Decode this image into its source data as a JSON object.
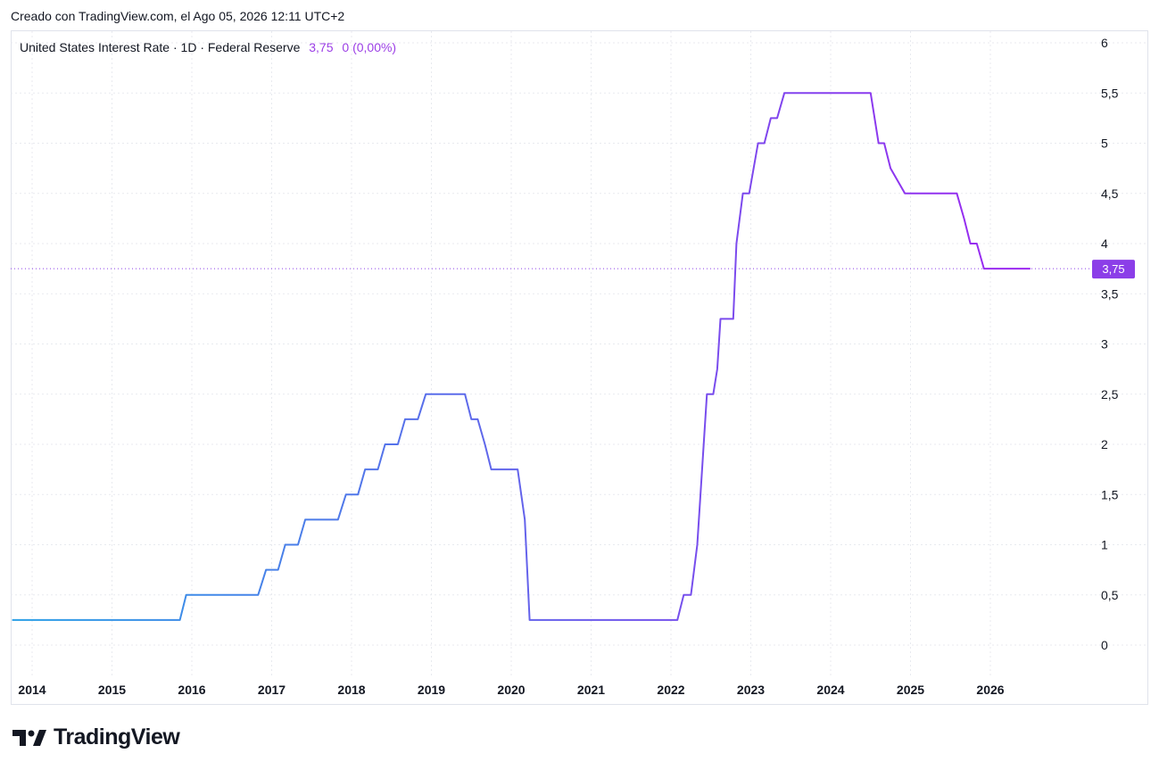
{
  "header": {
    "created_text": "Creado con TradingView.com, el Ago 05, 2026 12:11 UTC+2"
  },
  "legend": {
    "symbol_text": "United States Interest Rate · 1D · Federal Reserve",
    "value_text": "3,75",
    "change_text": "0 (0,00%)"
  },
  "footer": {
    "brand": "TradingView",
    "logo_icon": "tradingview-logo-icon"
  },
  "colors": {
    "line_start": "#2aa0e6",
    "line_end": "#9c27f0",
    "price_label_bg": "#8b3ee8",
    "grid": "#e8eaef"
  },
  "chart_data": {
    "type": "line",
    "title": "United States Interest Rate · 1D · Federal Reserve",
    "xlabel": "",
    "ylabel": "",
    "xlim": [
      2013.75,
      2027.0
    ],
    "ylim": [
      0,
      6
    ],
    "grid": true,
    "y_axis_position": "right",
    "y_ticks": [
      "0",
      "0,5",
      "1",
      "1,5",
      "2",
      "2,5",
      "3",
      "3,5",
      "4",
      "4,5",
      "5",
      "5,5",
      "6"
    ],
    "x_ticks": [
      "2014",
      "2015",
      "2016",
      "2017",
      "2018",
      "2019",
      "2020",
      "2021",
      "2022",
      "2023",
      "2024",
      "2025",
      "2026"
    ],
    "last_value": 3.75,
    "last_value_label": "3,75",
    "series": [
      {
        "x": [
          2013.75,
          2015.85,
          2015.93,
          2016.83,
          2016.93,
          2017.08,
          2017.17,
          2017.33,
          2017.42,
          2017.83,
          2017.93,
          2018.08,
          2018.17,
          2018.33,
          2018.42,
          2018.58,
          2018.67,
          2018.83,
          2018.93,
          2019.42,
          2019.5,
          2019.58,
          2019.67,
          2019.75,
          2019.83,
          2020.08,
          2020.17,
          2020.23,
          2022.08,
          2022.16,
          2022.25,
          2022.33,
          2022.45,
          2022.53,
          2022.58,
          2022.62,
          2022.78,
          2022.82,
          2022.9,
          2022.98,
          2023.09,
          2023.17,
          2023.25,
          2023.33,
          2023.42,
          2023.5,
          2024.5,
          2024.6,
          2024.67,
          2024.75,
          2024.93,
          2025.58,
          2025.67,
          2025.75,
          2025.83,
          2025.92,
          2026.5
        ],
        "y": [
          0.25,
          0.25,
          0.5,
          0.5,
          0.75,
          0.75,
          1.0,
          1.0,
          1.25,
          1.25,
          1.5,
          1.5,
          1.75,
          1.75,
          2.0,
          2.0,
          2.25,
          2.25,
          2.5,
          2.5,
          2.25,
          2.25,
          2.0,
          1.75,
          1.75,
          1.75,
          1.25,
          0.25,
          0.25,
          0.5,
          0.5,
          1.0,
          2.5,
          2.5,
          2.75,
          3.25,
          3.25,
          4.0,
          4.5,
          4.5,
          5.0,
          5.0,
          5.25,
          5.25,
          5.5,
          5.5,
          5.5,
          5.0,
          5.0,
          4.75,
          4.5,
          4.5,
          4.25,
          4.0,
          4.0,
          3.75,
          3.75
        ]
      }
    ]
  }
}
